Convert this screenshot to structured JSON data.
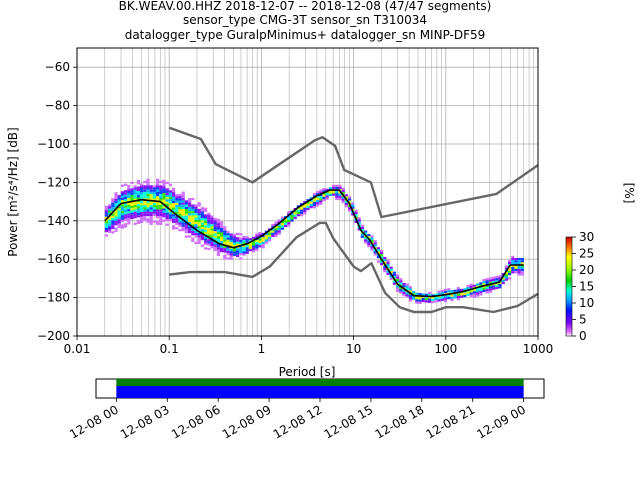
{
  "chart_data": [
    {
      "type": "heatmap",
      "title_lines": [
        "BK.WEAV.00.HHZ   2018-12-07 -- 2018-12-08  (47/47 segments)",
        "sensor_type CMG-3T sensor_sn T310034",
        "datalogger_type GuralpMinimus+ datalogger_sn MINP-DF59"
      ],
      "xlabel": "Period [s]",
      "ylabel": "Power [m²/s⁴/Hz] [dB]",
      "x_scale": "log",
      "xlim": [
        0.01,
        1000
      ],
      "ylim": [
        -200,
        -50
      ],
      "x_ticks": [
        {
          "value": 0.01,
          "label": "0.01"
        },
        {
          "value": 0.1,
          "label": "0.1"
        },
        {
          "value": 1,
          "label": "1"
        },
        {
          "value": 10,
          "label": "10"
        },
        {
          "value": 100,
          "label": "100"
        },
        {
          "value": 1000,
          "label": "1000"
        }
      ],
      "y_ticks": [
        {
          "value": -60,
          "label": "−60"
        },
        {
          "value": -80,
          "label": "−80"
        },
        {
          "value": -100,
          "label": "−100"
        },
        {
          "value": -120,
          "label": "−120"
        },
        {
          "value": -140,
          "label": "−140"
        },
        {
          "value": -160,
          "label": "−160"
        },
        {
          "value": -180,
          "label": "−180"
        },
        {
          "value": -200,
          "label": "−200"
        }
      ],
      "grid": true,
      "colorbar": {
        "label": "[%]",
        "range": [
          0,
          30
        ],
        "ticks": [
          {
            "value": 0,
            "label": "0"
          },
          {
            "value": 5,
            "label": "5"
          },
          {
            "value": 10,
            "label": "10"
          },
          {
            "value": 15,
            "label": "15"
          },
          {
            "value": 20,
            "label": "20"
          },
          {
            "value": 25,
            "label": "25"
          },
          {
            "value": 30,
            "label": "30"
          }
        ]
      },
      "series": [
        {
          "role": "high-noise-model",
          "color": "#666666",
          "points": [
            [
              0.1,
              -91.5
            ],
            [
              0.22,
              -97.4
            ],
            [
              0.32,
              -110.5
            ],
            [
              0.8,
              -120
            ],
            [
              3.8,
              -98
            ],
            [
              4.6,
              -96.5
            ],
            [
              6.3,
              -101
            ],
            [
              7.9,
              -113.5
            ],
            [
              15.4,
              -120
            ],
            [
              20,
              -138
            ],
            [
              354.8,
              -126
            ],
            [
              1000,
              -111
            ]
          ]
        },
        {
          "role": "low-noise-model",
          "color": "#666666",
          "points": [
            [
              0.1,
              -168
            ],
            [
              0.17,
              -166.7
            ],
            [
              0.4,
              -166.7
            ],
            [
              0.8,
              -169.2
            ],
            [
              1.24,
              -163.7
            ],
            [
              2.4,
              -148.6
            ],
            [
              4.3,
              -141.1
            ],
            [
              5,
              -141.1
            ],
            [
              6,
              -149
            ],
            [
              10,
              -163.8
            ],
            [
              12,
              -166.2
            ],
            [
              15.6,
              -162.1
            ],
            [
              21.9,
              -177.5
            ],
            [
              31.6,
              -185
            ],
            [
              45,
              -187.5
            ],
            [
              70,
              -187.5
            ],
            [
              101,
              -185
            ],
            [
              154,
              -185
            ],
            [
              328,
              -187.5
            ],
            [
              600,
              -184.4
            ],
            [
              1000,
              -178
            ]
          ]
        },
        {
          "role": "mode",
          "color": "#000000",
          "points": [
            [
              0.02,
              -140
            ],
            [
              0.03,
              -131
            ],
            [
              0.05,
              -129
            ],
            [
              0.08,
              -130
            ],
            [
              0.12,
              -137
            ],
            [
              0.2,
              -145
            ],
            [
              0.35,
              -152
            ],
            [
              0.5,
              -154
            ],
            [
              0.7,
              -152
            ],
            [
              1,
              -148
            ],
            [
              1.5,
              -142
            ],
            [
              2.5,
              -133
            ],
            [
              4,
              -127
            ],
            [
              5.5,
              -124
            ],
            [
              7,
              -124
            ],
            [
              9,
              -131
            ],
            [
              12,
              -145
            ],
            [
              15,
              -150
            ],
            [
              20,
              -160
            ],
            [
              30,
              -173
            ],
            [
              45,
              -179
            ],
            [
              70,
              -179.5
            ],
            [
              100,
              -178.5
            ],
            [
              150,
              -177
            ],
            [
              250,
              -174
            ],
            [
              380,
              -172
            ],
            [
              500,
              -163
            ],
            [
              700,
              -163
            ]
          ]
        }
      ],
      "density_band": [
        {
          "period": 0.02,
          "low": -147,
          "high": -132
        },
        {
          "period": 0.03,
          "low": -141,
          "high": -122
        },
        {
          "period": 0.05,
          "low": -139,
          "high": -119
        },
        {
          "period": 0.08,
          "low": -139,
          "high": -119
        },
        {
          "period": 0.12,
          "low": -143,
          "high": -124
        },
        {
          "period": 0.2,
          "low": -150,
          "high": -131
        },
        {
          "period": 0.35,
          "low": -157,
          "high": -141
        },
        {
          "period": 0.5,
          "low": -159,
          "high": -147
        },
        {
          "period": 0.7,
          "low": -157,
          "high": -148
        },
        {
          "period": 1,
          "low": -153,
          "high": -145
        },
        {
          "period": 1.5,
          "low": -146,
          "high": -139
        },
        {
          "period": 2.5,
          "low": -137,
          "high": -130
        },
        {
          "period": 4,
          "low": -131,
          "high": -124
        },
        {
          "period": 5.5,
          "low": -127,
          "high": -121
        },
        {
          "period": 7,
          "low": -128,
          "high": -121
        },
        {
          "period": 9,
          "low": -135,
          "high": -128
        },
        {
          "period": 12,
          "low": -149,
          "high": -142
        },
        {
          "period": 15,
          "low": -154,
          "high": -147
        },
        {
          "period": 20,
          "low": -164,
          "high": -156
        },
        {
          "period": 30,
          "low": -177,
          "high": -169
        },
        {
          "period": 45,
          "low": -182,
          "high": -176
        },
        {
          "period": 70,
          "low": -182,
          "high": -177
        },
        {
          "period": 100,
          "low": -181,
          "high": -175
        },
        {
          "period": 150,
          "low": -180,
          "high": -174
        },
        {
          "period": 250,
          "low": -177,
          "high": -170
        },
        {
          "period": 380,
          "low": -175,
          "high": -168
        },
        {
          "period": 500,
          "low": -167,
          "high": -158
        },
        {
          "period": 700,
          "low": -167,
          "high": -158
        }
      ]
    },
    {
      "type": "timeline",
      "x_ticks": [
        {
          "value": 0,
          "label": "12-08 00"
        },
        {
          "value": 3,
          "label": "12-08 03"
        },
        {
          "value": 6,
          "label": "12-08 06"
        },
        {
          "value": 9,
          "label": "12-08 09"
        },
        {
          "value": 12,
          "label": "12-08 12"
        },
        {
          "value": 15,
          "label": "12-08 15"
        },
        {
          "value": 18,
          "label": "12-08 18"
        },
        {
          "value": 21,
          "label": "12-08 21"
        },
        {
          "value": 24,
          "label": "12-09 00"
        }
      ],
      "xlim": [
        -1.2,
        25.2
      ],
      "bars": [
        {
          "role": "data-coverage",
          "color": "#0000ff",
          "start": 0,
          "end": 24
        },
        {
          "role": "processed-segments",
          "color": "#008000",
          "start": 0,
          "end": 24
        }
      ]
    }
  ]
}
